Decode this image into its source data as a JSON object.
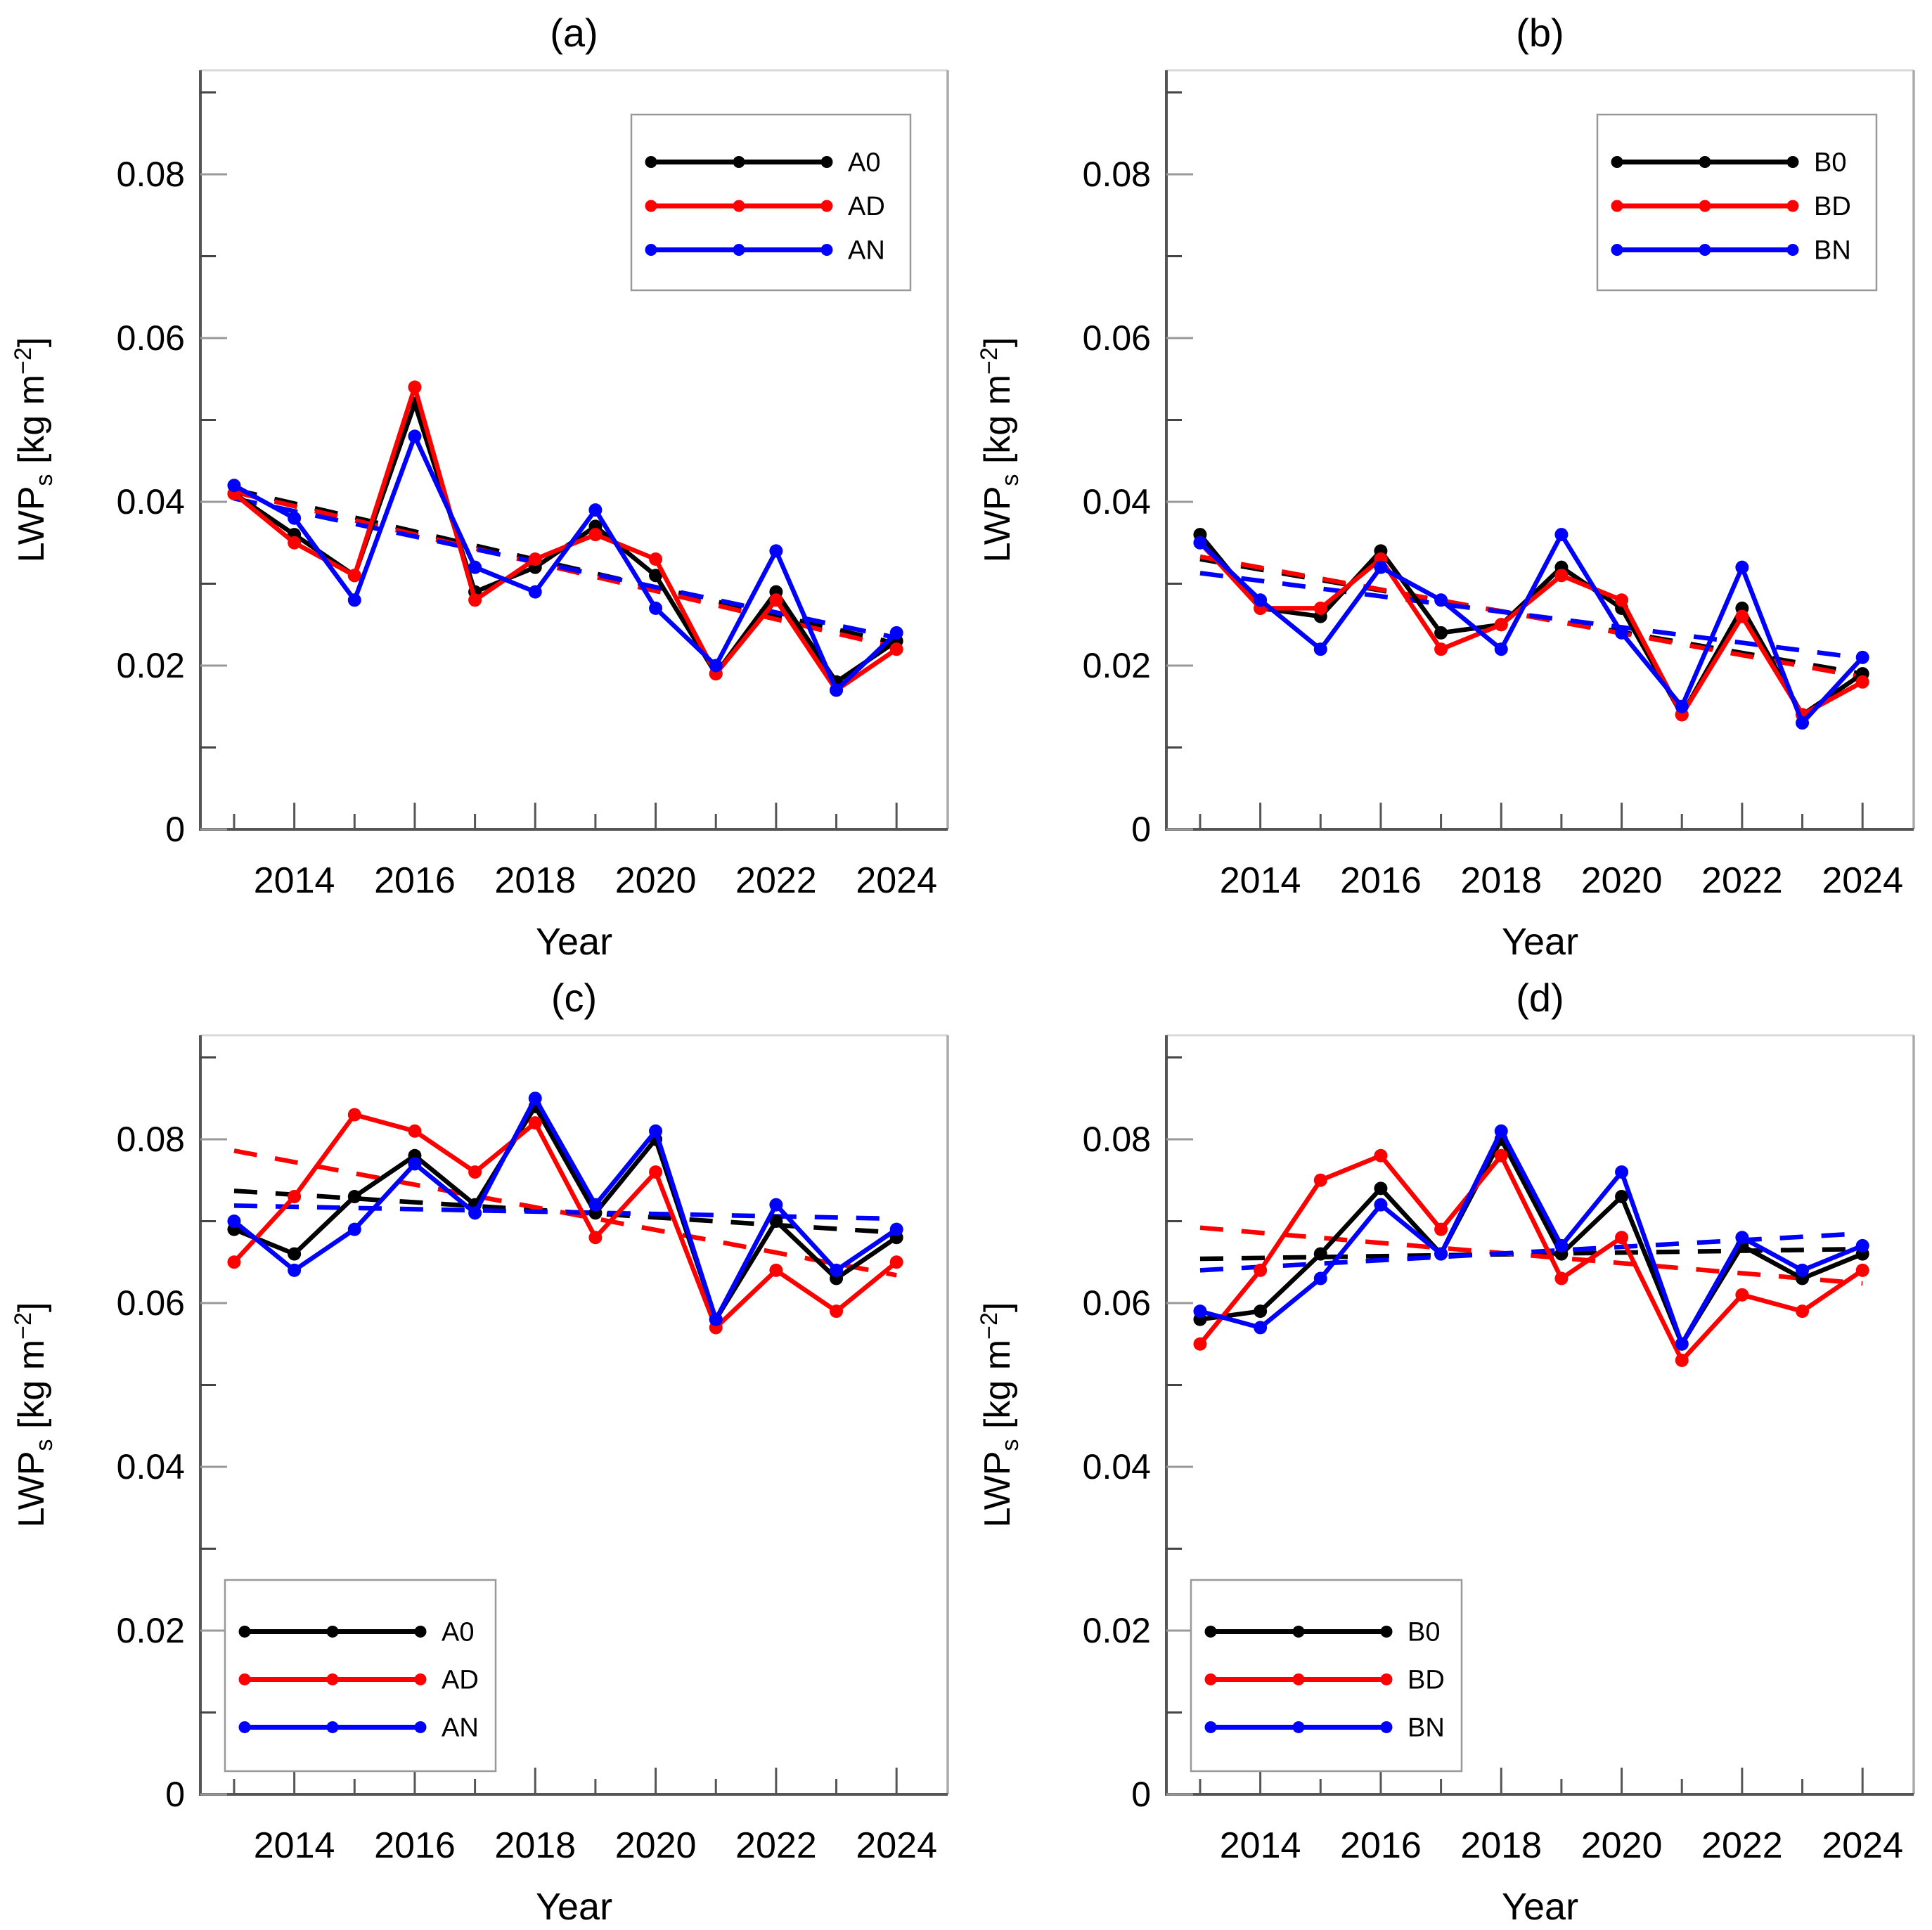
{
  "figure": {
    "background": "#ffffff",
    "colors": {
      "black": "#000000",
      "red": "#ff0000",
      "blue": "#0000ff"
    }
  },
  "axis_labels": {
    "x": "Year",
    "y_base": "LWP",
    "y_sub": "s",
    "y_unit_open": " [kg m",
    "y_sup": "−2",
    "y_unit_close": "]"
  },
  "axes": {
    "years": [
      2013,
      2014,
      2015,
      2016,
      2017,
      2018,
      2019,
      2020,
      2021,
      2022,
      2023,
      2024
    ],
    "xlim": [
      2012.44,
      2024.85
    ],
    "ylim": [
      0,
      0.0927
    ],
    "xticks_major": [
      2014,
      2016,
      2018,
      2020,
      2022,
      2024
    ],
    "xticks_minor": [
      2013,
      2015,
      2017,
      2019,
      2021,
      2023
    ],
    "yticks_major": [
      0,
      0.02,
      0.04,
      0.06,
      0.08
    ],
    "yticks_minor": [
      0.01,
      0.03,
      0.05,
      0.07,
      0.09
    ],
    "ytick_labels": [
      "0",
      "0.02",
      "0.04",
      "0.06",
      "0.08"
    ],
    "xtick_labels": [
      "2014",
      "2016",
      "2018",
      "2020",
      "2022",
      "2024"
    ]
  },
  "chart_data": [
    {
      "id": "a",
      "type": "line",
      "title": "(a)",
      "legend_position": "top-right",
      "legend": [
        "A0",
        "AD",
        "AN"
      ],
      "series": [
        {
          "name": "A0",
          "color": "#000000",
          "values": [
            0.041,
            0.036,
            0.031,
            0.052,
            0.029,
            0.032,
            0.037,
            0.031,
            0.019,
            0.029,
            0.018,
            0.023
          ]
        },
        {
          "name": "AD",
          "color": "#ff0000",
          "values": [
            0.041,
            0.035,
            0.031,
            0.054,
            0.028,
            0.033,
            0.036,
            0.033,
            0.019,
            0.028,
            0.017,
            0.022
          ]
        },
        {
          "name": "AN",
          "color": "#0000ff",
          "values": [
            0.042,
            0.038,
            0.028,
            0.048,
            0.032,
            0.029,
            0.039,
            0.027,
            0.02,
            0.034,
            0.017,
            0.024
          ]
        }
      ],
      "trend_lines": [
        {
          "name": "A0-trend",
          "color": "#000000",
          "start": 0.0415,
          "end": 0.0227
        },
        {
          "name": "AD-trend",
          "color": "#ff0000",
          "start": 0.0412,
          "end": 0.0222
        },
        {
          "name": "AN-trend",
          "color": "#0000ff",
          "start": 0.0404,
          "end": 0.0234
        }
      ]
    },
    {
      "id": "b",
      "type": "line",
      "title": "(b)",
      "legend_position": "top-right",
      "legend": [
        "B0",
        "BD",
        "BN"
      ],
      "series": [
        {
          "name": "B0",
          "color": "#000000",
          "values": [
            0.036,
            0.027,
            0.026,
            0.034,
            0.024,
            0.025,
            0.032,
            0.027,
            0.014,
            0.027,
            0.014,
            0.019
          ]
        },
        {
          "name": "BD",
          "color": "#ff0000",
          "values": [
            0.035,
            0.027,
            0.027,
            0.033,
            0.022,
            0.025,
            0.031,
            0.028,
            0.014,
            0.026,
            0.014,
            0.018
          ]
        },
        {
          "name": "BN",
          "color": "#0000ff",
          "values": [
            0.035,
            0.028,
            0.022,
            0.032,
            0.028,
            0.022,
            0.036,
            0.024,
            0.015,
            0.032,
            0.013,
            0.021
          ]
        }
      ],
      "trend_lines": [
        {
          "name": "B0-trend",
          "color": "#000000",
          "start": 0.033,
          "end": 0.019
        },
        {
          "name": "BD-trend",
          "color": "#ff0000",
          "start": 0.0333,
          "end": 0.0186
        },
        {
          "name": "BN-trend",
          "color": "#0000ff",
          "start": 0.0313,
          "end": 0.0209
        }
      ]
    },
    {
      "id": "c",
      "type": "line",
      "title": "(c)",
      "legend_position": "bottom-left",
      "legend": [
        "A0",
        "AD",
        "AN"
      ],
      "series": [
        {
          "name": "A0",
          "color": "#000000",
          "values": [
            0.069,
            0.066,
            0.073,
            0.078,
            0.072,
            0.084,
            0.071,
            0.08,
            0.058,
            0.07,
            0.063,
            0.068
          ]
        },
        {
          "name": "AD",
          "color": "#ff0000",
          "values": [
            0.065,
            0.073,
            0.083,
            0.081,
            0.076,
            0.082,
            0.068,
            0.076,
            0.057,
            0.064,
            0.059,
            0.065
          ]
        },
        {
          "name": "AN",
          "color": "#0000ff",
          "values": [
            0.07,
            0.064,
            0.069,
            0.077,
            0.071,
            0.085,
            0.072,
            0.081,
            0.058,
            0.072,
            0.064,
            0.069
          ]
        }
      ],
      "trend_lines": [
        {
          "name": "A0-trend",
          "color": "#000000",
          "start": 0.0737,
          "end": 0.0686
        },
        {
          "name": "AD-trend",
          "color": "#ff0000",
          "start": 0.0786,
          "end": 0.0634
        },
        {
          "name": "AN-trend",
          "color": "#0000ff",
          "start": 0.0719,
          "end": 0.0703
        }
      ]
    },
    {
      "id": "d",
      "type": "line",
      "title": "(d)",
      "legend_position": "bottom-left",
      "legend": [
        "B0",
        "BD",
        "BN"
      ],
      "series": [
        {
          "name": "B0",
          "color": "#000000",
          "values": [
            0.058,
            0.059,
            0.066,
            0.074,
            0.066,
            0.08,
            0.066,
            0.073,
            0.055,
            0.067,
            0.063,
            0.066
          ]
        },
        {
          "name": "BD",
          "color": "#ff0000",
          "values": [
            0.055,
            0.064,
            0.075,
            0.078,
            0.069,
            0.078,
            0.063,
            0.068,
            0.053,
            0.061,
            0.059,
            0.064
          ]
        },
        {
          "name": "BN",
          "color": "#0000ff",
          "values": [
            0.059,
            0.057,
            0.063,
            0.072,
            0.066,
            0.081,
            0.067,
            0.076,
            0.055,
            0.068,
            0.064,
            0.067
          ]
        }
      ],
      "trend_lines": [
        {
          "name": "B0-trend",
          "color": "#000000",
          "start": 0.0654,
          "end": 0.0666
        },
        {
          "name": "BD-trend",
          "color": "#ff0000",
          "start": 0.0692,
          "end": 0.0624
        },
        {
          "name": "BN-trend",
          "color": "#0000ff",
          "start": 0.064,
          "end": 0.0685
        }
      ]
    }
  ]
}
